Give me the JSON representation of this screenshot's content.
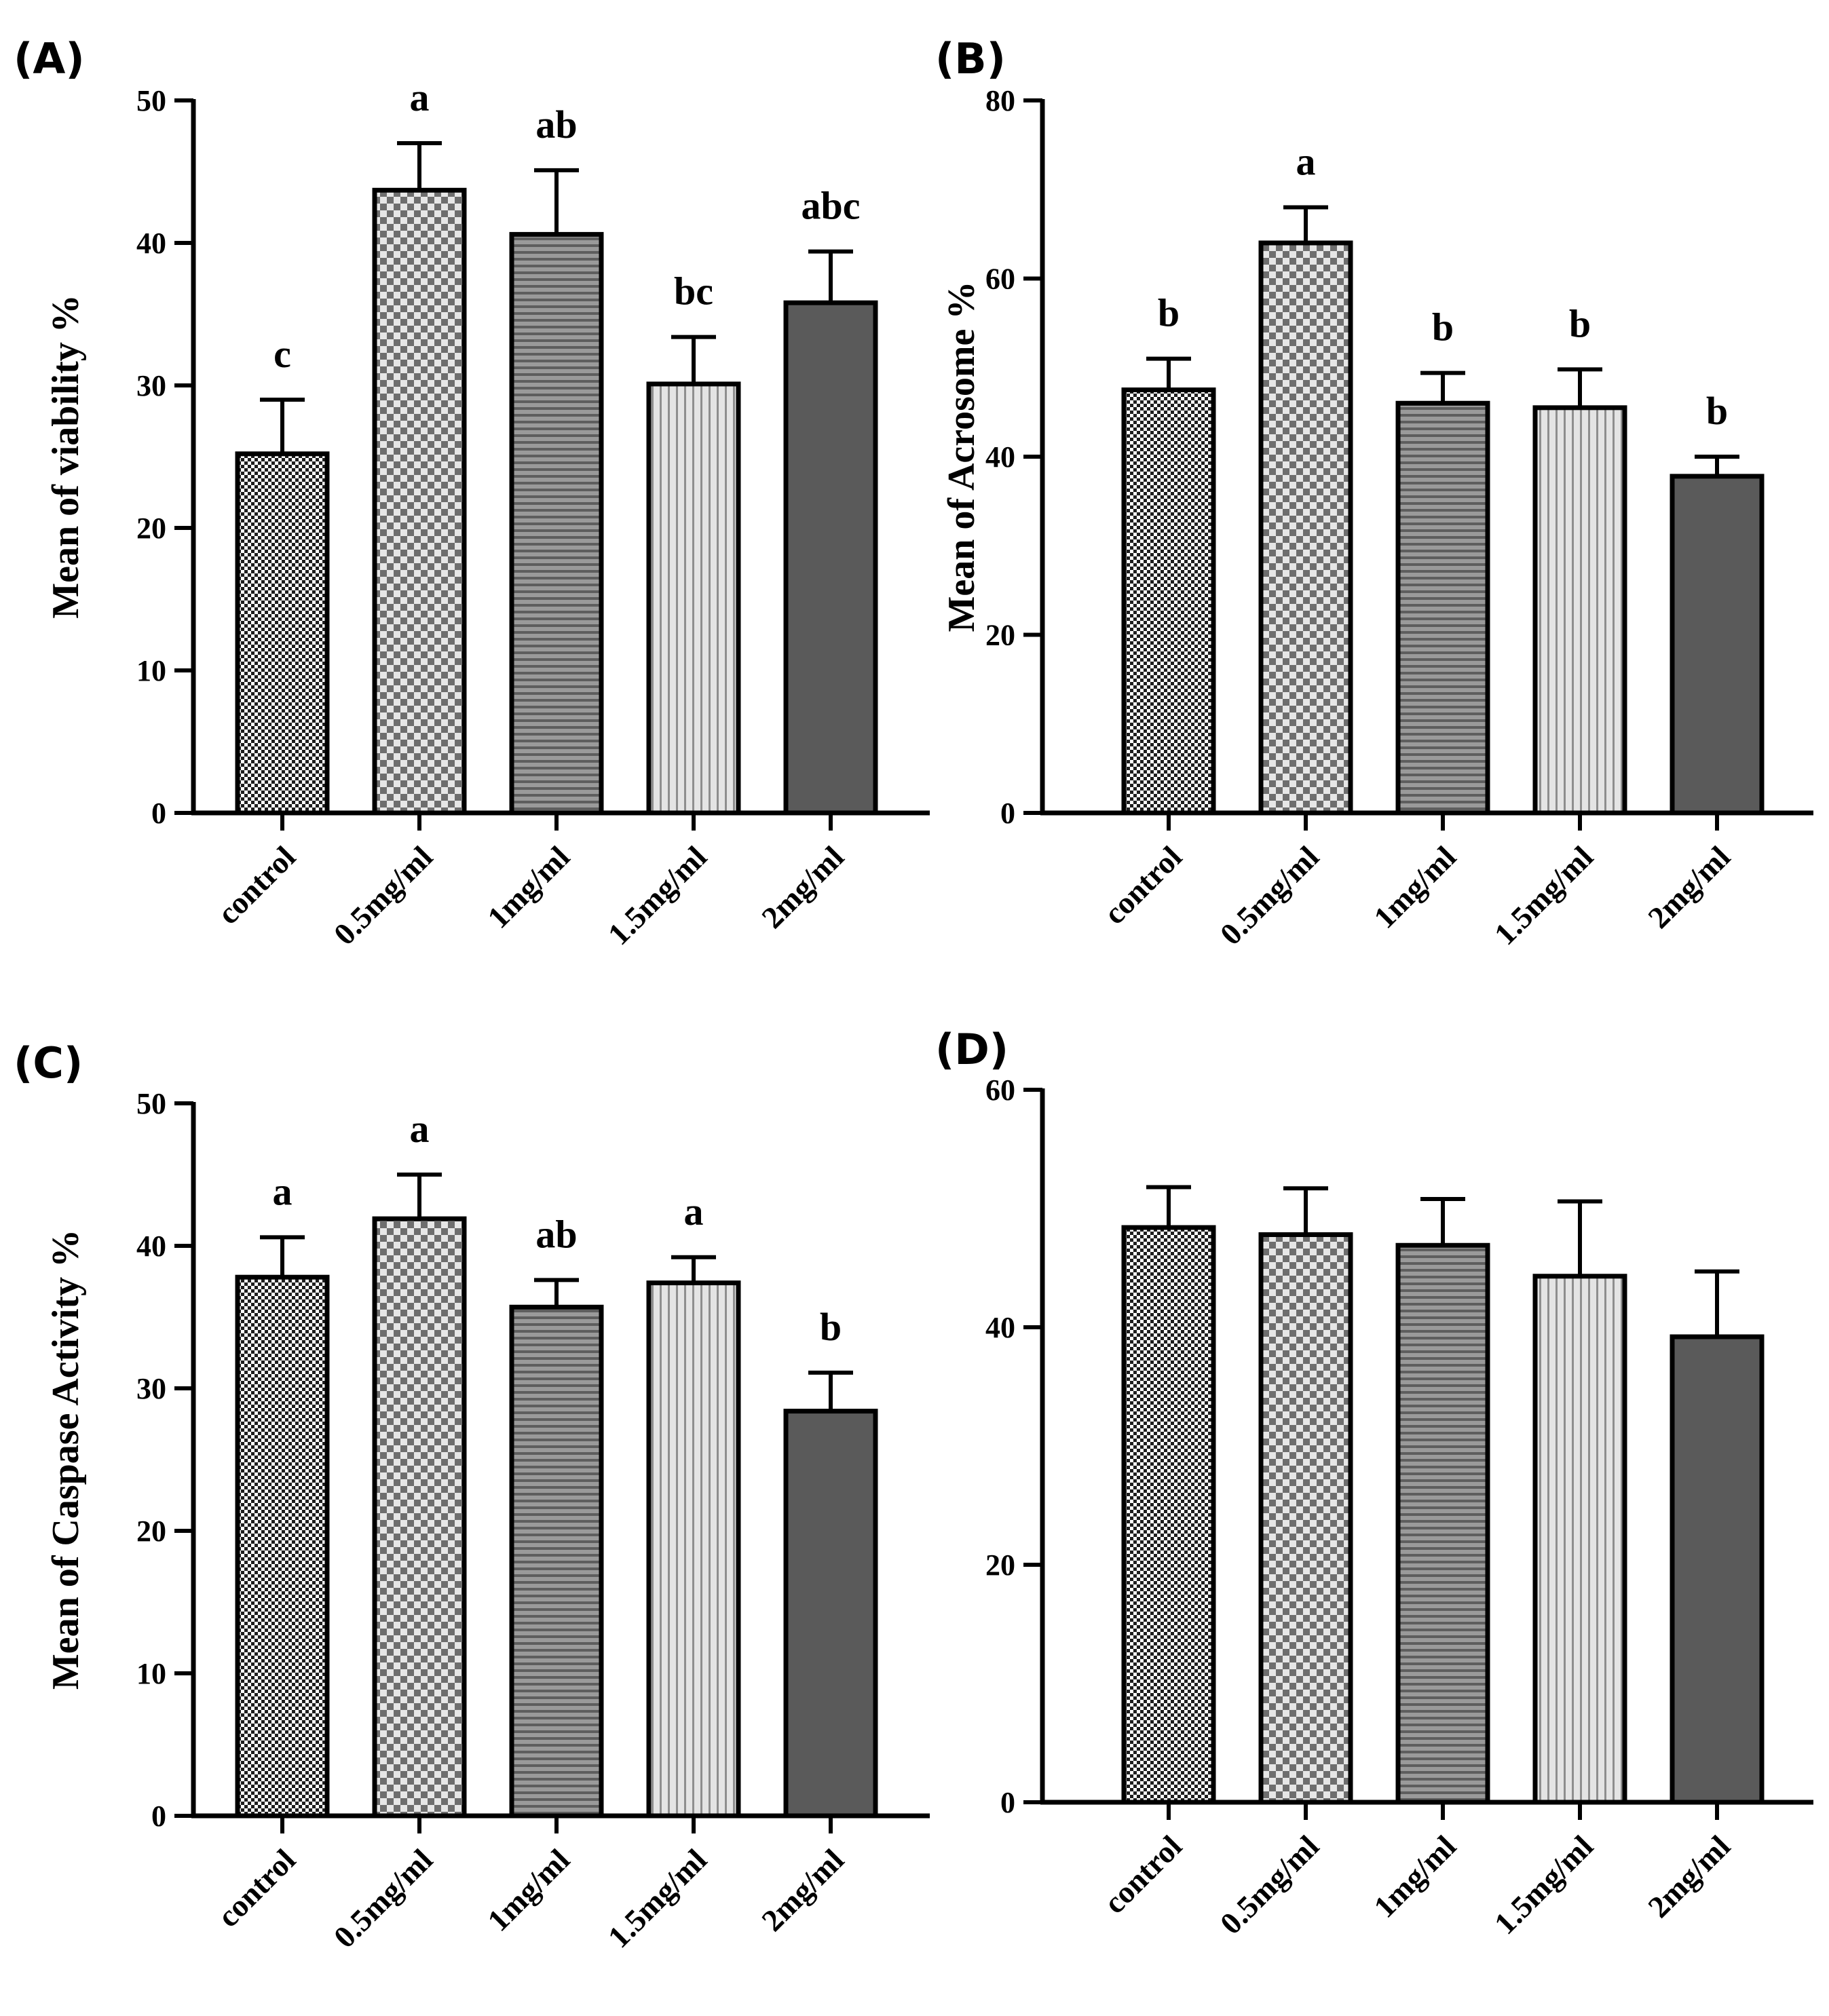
{
  "chart_data": [
    {
      "panel_label": "(A)",
      "type": "bar",
      "categories": [
        "control",
        "0.5mg/ml",
        "1mg/ml",
        "1.5mg/ml",
        "2mg/ml"
      ],
      "values": [
        25.2,
        43.7,
        40.6,
        30.1,
        35.8
      ],
      "errors": [
        3.8,
        3.3,
        4.5,
        3.3,
        3.6
      ],
      "significance": [
        "c",
        "a",
        "ab",
        "bc",
        "abc"
      ],
      "ylabel": "Mean of viability %",
      "ylim": [
        0,
        50
      ],
      "yticks": [
        0,
        10,
        20,
        30,
        40,
        50
      ],
      "grid": false,
      "legend": "none"
    },
    {
      "panel_label": "(B)",
      "type": "bar",
      "categories": [
        "control",
        "0.5mg/ml",
        "1mg/ml",
        "1.5mg/ml",
        "2mg/ml"
      ],
      "values": [
        47.5,
        64,
        46,
        45.5,
        37.8
      ],
      "errors": [
        3.5,
        4,
        3.4,
        4.3,
        2.2
      ],
      "significance": [
        "b",
        "a",
        "b",
        "b",
        "b"
      ],
      "ylabel": "Mean of Acrosome %",
      "ylim": [
        0,
        80
      ],
      "yticks": [
        0,
        20,
        40,
        60,
        80
      ],
      "grid": false,
      "legend": "none"
    },
    {
      "panel_label": "(C)",
      "type": "bar",
      "categories": [
        "control",
        "0.5mg/ml",
        "1mg/ml",
        "1.5mg/ml",
        "2mg/ml"
      ],
      "values": [
        37.8,
        41.9,
        35.7,
        37.4,
        28.4
      ],
      "errors": [
        2.8,
        3.1,
        1.9,
        1.8,
        2.7
      ],
      "significance": [
        "a",
        "a",
        "ab",
        "a",
        "b"
      ],
      "ylabel": "Mean of Caspase Activity %",
      "ylim": [
        0,
        50
      ],
      "yticks": [
        0,
        10,
        20,
        30,
        40,
        50
      ],
      "grid": false,
      "legend": "none"
    },
    {
      "panel_label": "(D)",
      "type": "bar",
      "categories": [
        "control",
        "0.5mg/ml",
        "1mg/ml",
        "1.5mg/ml",
        "2mg/ml"
      ],
      "values": [
        48.4,
        47.8,
        46.9,
        44.3,
        39.2
      ],
      "errors": [
        3.4,
        3.9,
        3.9,
        6.3,
        5.5
      ],
      "significance": [
        "",
        "",
        "",
        "",
        ""
      ],
      "ylabel": "",
      "ylim": [
        0,
        60
      ],
      "yticks": [
        0,
        20,
        40,
        60
      ],
      "grid": false,
      "legend": "none"
    }
  ],
  "style": {
    "bar_patterns": [
      "fine-checker",
      "coarse-checker",
      "horizontal-lines",
      "vertical-lines",
      "solid-dark"
    ],
    "bar_outline": "#000000",
    "axis_color": "#000000",
    "solid_bar_color": "#5a5a5a"
  }
}
